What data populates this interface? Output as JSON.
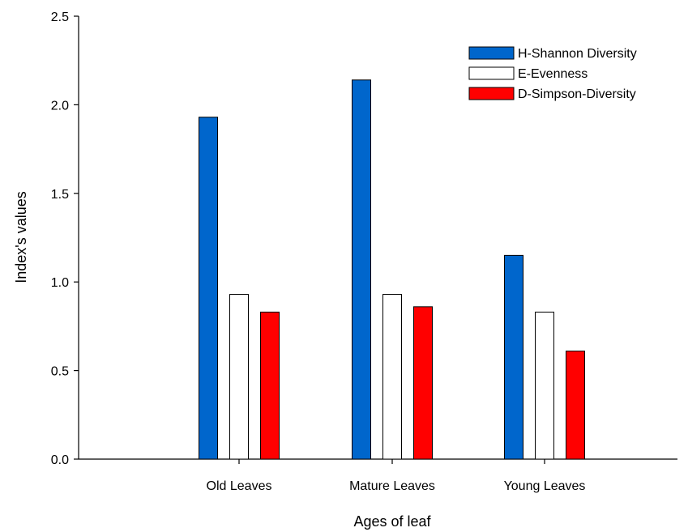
{
  "chart_data": {
    "type": "bar",
    "title": "",
    "xlabel": "Ages of leaf",
    "ylabel": "Index's values",
    "categories": [
      "Old Leaves",
      "Mature Leaves",
      "Young Leaves"
    ],
    "series": [
      {
        "name": "H-Shannon Diversity",
        "color": "#0066cc",
        "values": [
          1.93,
          2.14,
          1.15
        ]
      },
      {
        "name": "E-Evenness",
        "color": "#ffffff",
        "values": [
          0.93,
          0.93,
          0.83
        ]
      },
      {
        "name": "D-Simpson-Diversity",
        "color": "#ff0000",
        "values": [
          0.83,
          0.86,
          0.61
        ]
      }
    ],
    "ylim": [
      0,
      2.5
    ],
    "yticks": [
      "0.0",
      "0.5",
      "1.0",
      "1.5",
      "2.0",
      "2.5"
    ],
    "grid": false,
    "legend": "top-right"
  }
}
